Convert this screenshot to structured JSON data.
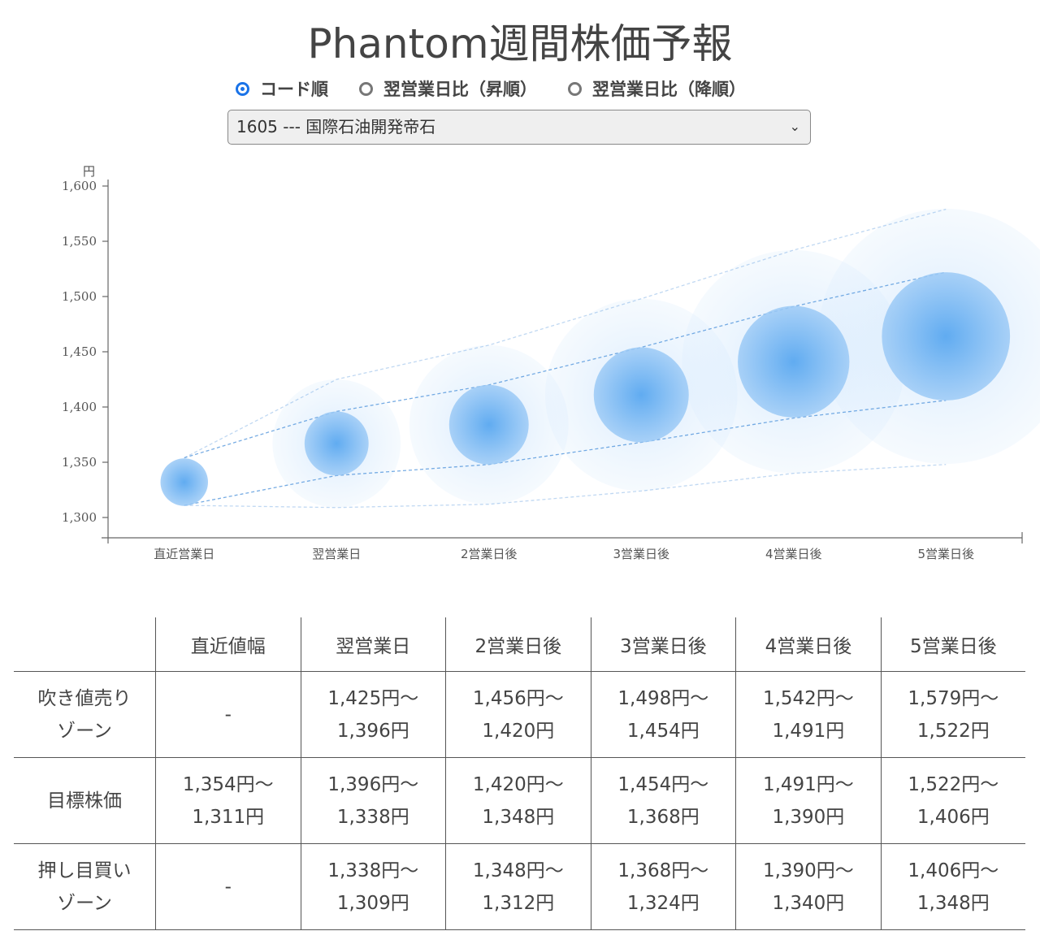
{
  "title": "Phantom週間株価予報",
  "sort_options": [
    {
      "label": "コード順",
      "checked": true
    },
    {
      "label": "翌営業日比（昇順）",
      "checked": false
    },
    {
      "label": "翌営業日比（降順）",
      "checked": false
    }
  ],
  "stock_select": {
    "value": "1605 --- 国際石油開発帝石",
    "chevron_icon": "chevron-down-icon"
  },
  "chart_data": {
    "type": "scatter",
    "ylabel": "円",
    "ylim": [
      1290,
      1610
    ],
    "yticks": [
      "1,300",
      "1,350",
      "1,400",
      "1,450",
      "1,500",
      "1,550",
      "1,600"
    ],
    "categories": [
      "直近営業日",
      "翌営業日",
      "2営業日後",
      "3営業日後",
      "4営業日後",
      "5営業日後"
    ],
    "center": [
      1332,
      1367,
      1384,
      1411,
      1441,
      1464
    ],
    "target_high": [
      1354,
      1396,
      1420,
      1454,
      1491,
      1522
    ],
    "target_low": [
      1311,
      1338,
      1348,
      1368,
      1390,
      1406
    ],
    "outer_high": [
      1354,
      1425,
      1456,
      1498,
      1542,
      1579
    ],
    "outer_low": [
      1311,
      1309,
      1312,
      1324,
      1340,
      1348
    ],
    "bubble_color": "#5aa8f0",
    "line_color": "#4a90d9",
    "grid": false
  },
  "table": {
    "headers": [
      "",
      "直近値幅",
      "翌営業日",
      "2営業日後",
      "3営業日後",
      "4営業日後",
      "5営業日後"
    ],
    "rows": [
      {
        "label": [
          "吹き値売り",
          "ゾーン"
        ],
        "cells": [
          [
            "-"
          ],
          [
            "1,425円～",
            "1,396円"
          ],
          [
            "1,456円～",
            "1,420円"
          ],
          [
            "1,498円～",
            "1,454円"
          ],
          [
            "1,542円～",
            "1,491円"
          ],
          [
            "1,579円～",
            "1,522円"
          ]
        ]
      },
      {
        "label": [
          "目標株価"
        ],
        "cells": [
          [
            "1,354円～",
            "1,311円"
          ],
          [
            "1,396円～",
            "1,338円"
          ],
          [
            "1,420円～",
            "1,348円"
          ],
          [
            "1,454円～",
            "1,368円"
          ],
          [
            "1,491円～",
            "1,390円"
          ],
          [
            "1,522円～",
            "1,406円"
          ]
        ]
      },
      {
        "label": [
          "押し目買い",
          "ゾーン"
        ],
        "cells": [
          [
            "-"
          ],
          [
            "1,338円～",
            "1,309円"
          ],
          [
            "1,348円～",
            "1,312円"
          ],
          [
            "1,368円～",
            "1,324円"
          ],
          [
            "1,390円～",
            "1,340円"
          ],
          [
            "1,406円～",
            "1,348円"
          ]
        ]
      }
    ]
  }
}
